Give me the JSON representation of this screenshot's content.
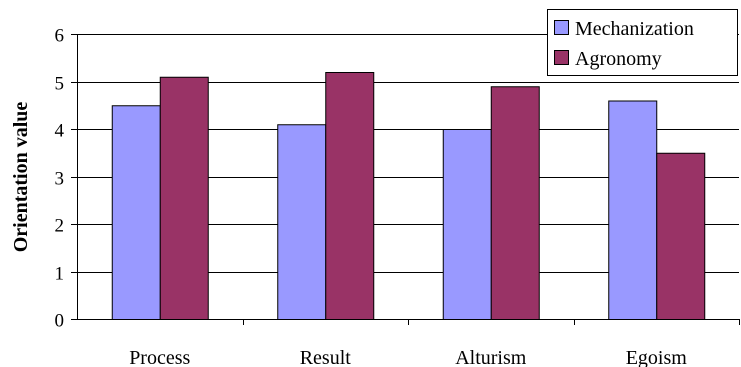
{
  "chart_data": {
    "type": "bar",
    "title": "",
    "xlabel": "",
    "ylabel": "Orientation value",
    "ylim": [
      0,
      6
    ],
    "yticks": [
      0,
      1,
      2,
      3,
      4,
      5,
      6
    ],
    "categories": [
      "Process",
      "Result",
      "Alturism",
      "Egoism"
    ],
    "series": [
      {
        "name": "Mechanization",
        "values": [
          4.5,
          4.1,
          4.0,
          4.6
        ],
        "color": "#9999ff"
      },
      {
        "name": "Agronomy",
        "values": [
          5.1,
          5.2,
          4.9,
          3.5
        ],
        "color": "#993366"
      }
    ],
    "grid": true,
    "legend_position": "top-right"
  }
}
